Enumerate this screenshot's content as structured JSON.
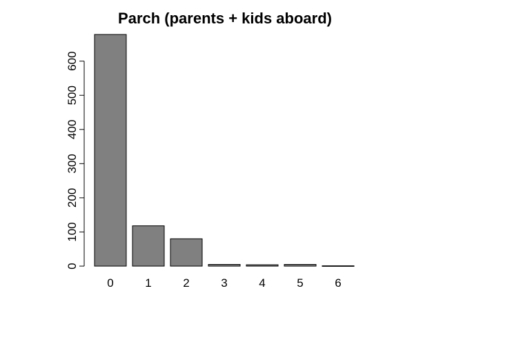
{
  "chart_data": {
    "type": "bar",
    "title": "Parch (parents + kids aboard)",
    "xlabel": "",
    "ylabel": "",
    "categories": [
      "0",
      "1",
      "2",
      "3",
      "4",
      "5",
      "6"
    ],
    "values": [
      678,
      118,
      80,
      5,
      4,
      5,
      1
    ],
    "ylim": [
      0,
      678
    ],
    "yticks": [
      0,
      100,
      200,
      300,
      400,
      500,
      600
    ],
    "bar_color": "#808080",
    "bar_border": "#000000",
    "grid": false,
    "legend": "none"
  }
}
